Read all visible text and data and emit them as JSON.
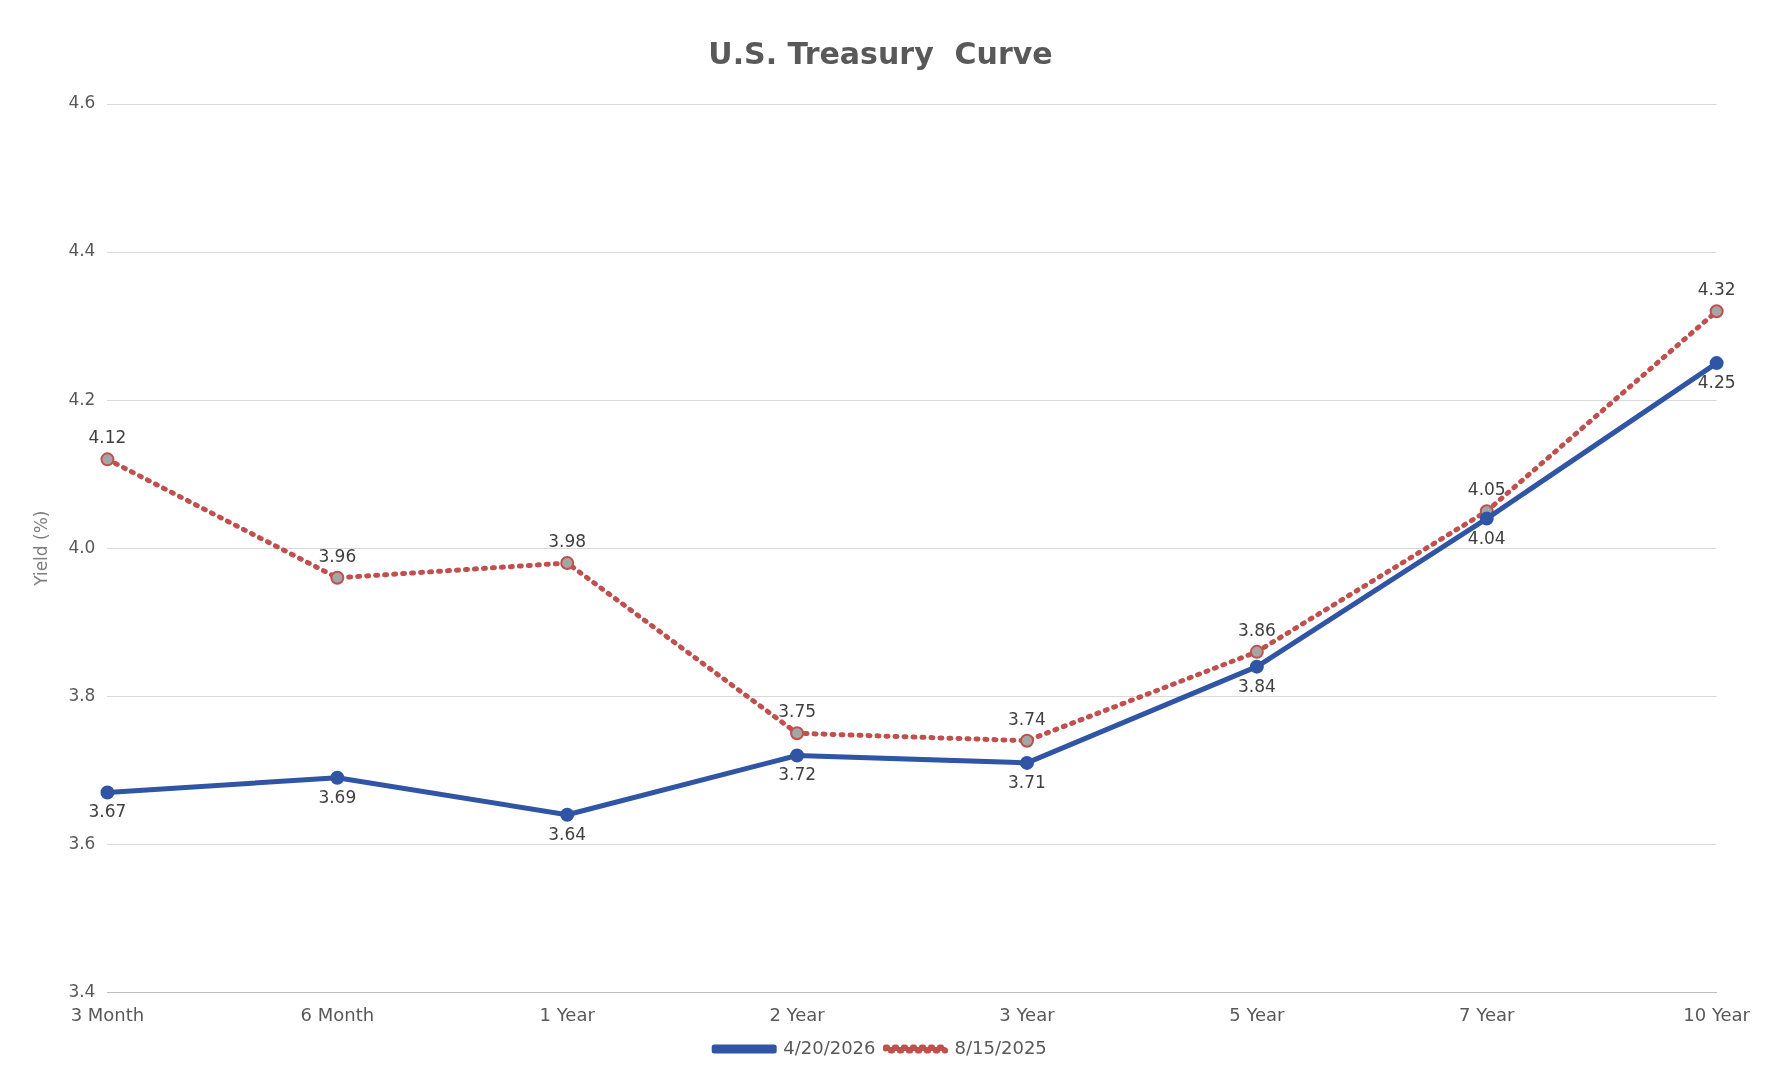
{
  "chart_data": {
    "type": "line",
    "title": "U.S. Treasury  Curve",
    "ylabel": "Yield (%)",
    "categories": [
      "3 Month",
      "6 Month",
      "1 Year",
      "2 Year",
      "3 Year",
      "5 Year",
      "7 Year",
      "10 Year"
    ],
    "series": [
      {
        "name": "4/20/2026",
        "color": "#2f55a4",
        "line_style": "solid",
        "values": [
          3.67,
          3.69,
          3.64,
          3.72,
          3.71,
          3.84,
          4.04,
          4.25
        ]
      },
      {
        "name": "8/15/2025",
        "color": "#c0504d",
        "line_style": "dotted",
        "values": [
          4.12,
          3.96,
          3.98,
          3.75,
          3.74,
          3.86,
          4.05,
          4.32
        ]
      }
    ],
    "ylim": [
      3.4,
      4.6
    ],
    "yticks": [
      3.4,
      3.6,
      3.8,
      {
        "value": 4,
        "label": "4.0"
      },
      4.2,
      4.4,
      4.6
    ],
    "grid": "y",
    "legend": "bottom",
    "marker": "circle",
    "data_labels": true
  }
}
